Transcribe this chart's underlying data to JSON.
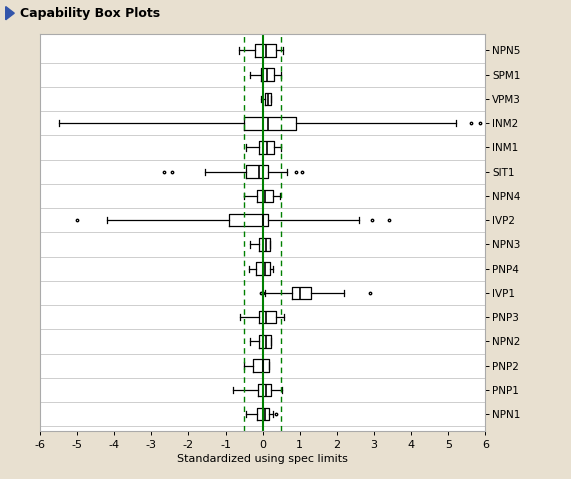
{
  "title": "Capability Box Plots",
  "xlabel": "Standardized using spec limits",
  "xlim": [
    -6,
    6
  ],
  "xticks": [
    -6,
    -5,
    -4,
    -3,
    -2,
    -1,
    0,
    1,
    2,
    3,
    4,
    5,
    6
  ],
  "ref_line": 0,
  "dashed_lines": [
    -0.5,
    0.5
  ],
  "background_color": "#e8e0d0",
  "plot_bg_color": "#ffffff",
  "border_color": "#aaaaaa",
  "labels_top_to_bottom": [
    "NPN5",
    "SPM1",
    "VPM3",
    "INM2",
    "INM1",
    "SIT1",
    "NPN4",
    "IVP2",
    "NPN3",
    "PNP4",
    "IVP1",
    "PNP3",
    "NPN2",
    "PNP2",
    "PNP1",
    "NPN1"
  ],
  "boxes": [
    {
      "label": "NPN5",
      "whislo": -0.65,
      "q1": -0.2,
      "med": 0.1,
      "q3": 0.35,
      "whishi": 0.55,
      "fliers_lo": [],
      "fliers_hi": []
    },
    {
      "label": "SPM1",
      "whislo": -0.35,
      "q1": -0.05,
      "med": 0.12,
      "q3": 0.3,
      "whishi": 0.5,
      "fliers_lo": [],
      "fliers_hi": []
    },
    {
      "label": "VPM3",
      "whislo": -0.05,
      "q1": 0.05,
      "med": 0.15,
      "q3": 0.22,
      "whishi": 0.22,
      "fliers_lo": [],
      "fliers_hi": []
    },
    {
      "label": "INM2",
      "whislo": -5.5,
      "q1": -0.5,
      "med": 0.15,
      "q3": 0.9,
      "whishi": 5.2,
      "fliers_lo": [],
      "fliers_hi": [
        5.6,
        5.85
      ]
    },
    {
      "label": "INM1",
      "whislo": -0.45,
      "q1": -0.1,
      "med": 0.12,
      "q3": 0.3,
      "whishi": 0.5,
      "fliers_lo": [],
      "fliers_hi": []
    },
    {
      "label": "SIT1",
      "whislo": -1.55,
      "q1": -0.45,
      "med": -0.1,
      "q3": 0.15,
      "whishi": 0.65,
      "fliers_lo": [
        -2.65,
        -2.45
      ],
      "fliers_hi": [
        0.9,
        1.05
      ]
    },
    {
      "label": "NPN4",
      "whislo": -0.5,
      "q1": -0.15,
      "med": 0.05,
      "q3": 0.28,
      "whishi": 0.48,
      "fliers_lo": [],
      "fliers_hi": []
    },
    {
      "label": "IVP2",
      "whislo": -4.2,
      "q1": -0.9,
      "med": 0.0,
      "q3": 0.15,
      "whishi": 2.6,
      "fliers_lo": [
        -5.0
      ],
      "fliers_hi": [
        2.95,
        3.4
      ]
    },
    {
      "label": "NPN3",
      "whislo": -0.35,
      "q1": -0.1,
      "med": 0.08,
      "q3": 0.2,
      "whishi": 0.2,
      "fliers_lo": [],
      "fliers_hi": []
    },
    {
      "label": "PNP4",
      "whislo": -0.38,
      "q1": -0.18,
      "med": 0.05,
      "q3": 0.2,
      "whishi": 0.28,
      "fliers_lo": [],
      "fliers_hi": []
    },
    {
      "label": "IVP1",
      "whislo": 0.05,
      "q1": 0.8,
      "med": 1.0,
      "q3": 1.3,
      "whishi": 2.2,
      "fliers_lo": [
        -0.05,
        0.0
      ],
      "fliers_hi": [
        2.9
      ]
    },
    {
      "label": "PNP3",
      "whislo": -0.6,
      "q1": -0.1,
      "med": 0.1,
      "q3": 0.35,
      "whishi": 0.58,
      "fliers_lo": [],
      "fliers_hi": []
    },
    {
      "label": "NPN2",
      "whislo": -0.35,
      "q1": -0.1,
      "med": 0.08,
      "q3": 0.22,
      "whishi": 0.22,
      "fliers_lo": [],
      "fliers_hi": []
    },
    {
      "label": "PNP2",
      "whislo": -0.5,
      "q1": -0.25,
      "med": 0.02,
      "q3": 0.18,
      "whishi": 0.18,
      "fliers_lo": [],
      "fliers_hi": []
    },
    {
      "label": "PNP1",
      "whislo": -0.8,
      "q1": -0.12,
      "med": 0.08,
      "q3": 0.22,
      "whishi": 0.52,
      "fliers_lo": [],
      "fliers_hi": []
    },
    {
      "label": "NPN1",
      "whislo": -0.45,
      "q1": -0.15,
      "med": 0.05,
      "q3": 0.18,
      "whishi": 0.28,
      "fliers_lo": [],
      "fliers_hi": [
        0.35
      ]
    }
  ]
}
